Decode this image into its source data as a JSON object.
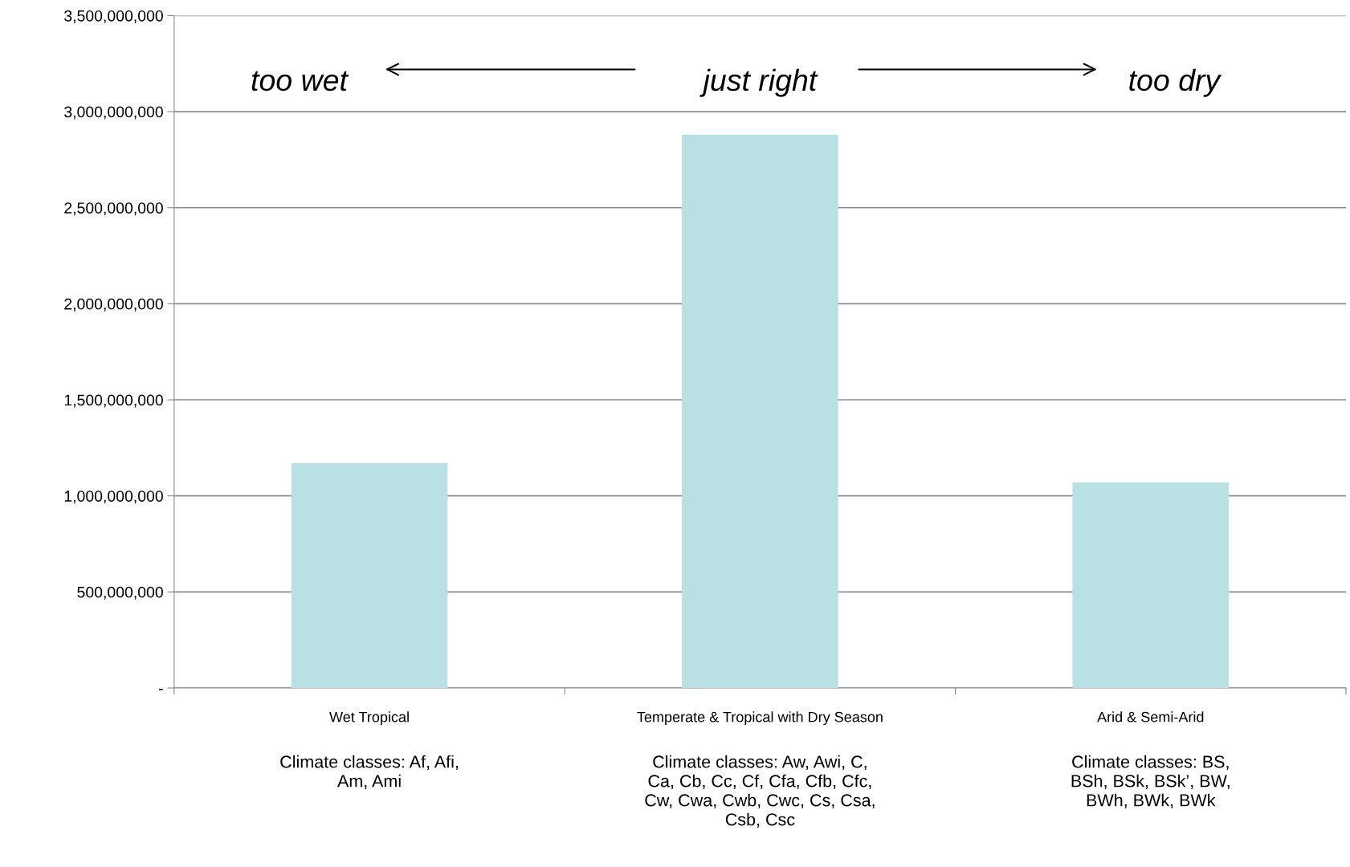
{
  "chart_data": {
    "type": "bar",
    "categories": [
      "Wet Tropical",
      "Temperate & Tropical with Dry Season",
      "Arid & Semi-Arid"
    ],
    "values": [
      1170000000,
      2880000000,
      1070000000
    ],
    "color": "#b9e0e2",
    "ylim": [
      0,
      3500000000
    ],
    "yticks": [
      {
        "value": 0,
        "label": "-"
      },
      {
        "value": 500000000,
        "label": "500,000,000"
      },
      {
        "value": 1000000000,
        "label": "1,000,000,000"
      },
      {
        "value": 1500000000,
        "label": "1,500,000,000"
      },
      {
        "value": 2000000000,
        "label": "2,000,000,000"
      },
      {
        "value": 2500000000,
        "label": "2,500,000,000"
      },
      {
        "value": 3000000000,
        "label": "3,000,000,000"
      },
      {
        "value": 3500000000,
        "label": "3,500,000,000"
      }
    ],
    "grid": "y",
    "legend": false,
    "annotations": [
      "too wet",
      "just right",
      "too dry",
      "Climate classes: Af, Afi,\nAm, Ami",
      "Climate classes: Aw, Awi, C,\nCa, Cb, Cc, Cf, Cfa, Cfb, Cfc,\nCw, Cwa, Cwb, Cwc, Cs, Csa,\nCsb, Csc",
      "Climate classes: BS,\nBSh, BSk, BSk’, BW,\nBWh, BWk, BWk"
    ]
  }
}
